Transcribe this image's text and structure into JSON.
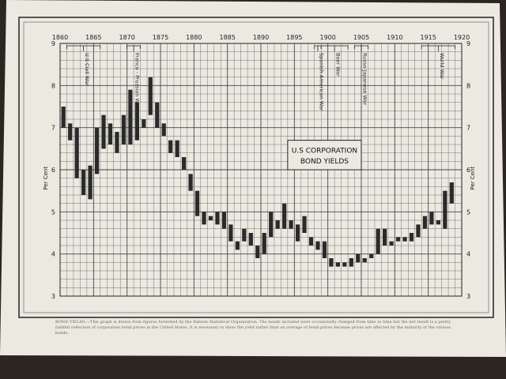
{
  "chart_data": {
    "type": "candlestick",
    "title": "U.S CORPORATION",
    "subtitle": "BOND YIELDS",
    "ylabel": "Per Cent",
    "xlim": [
      1860,
      1920
    ],
    "ylim": [
      3,
      9
    ],
    "x_ticks": [
      1860,
      1865,
      1870,
      1875,
      1880,
      1885,
      1890,
      1895,
      1900,
      1905,
      1910,
      1915,
      1920
    ],
    "y_ticks": [
      3,
      4,
      5,
      6,
      7,
      8,
      9
    ],
    "grid": true,
    "bars": [
      {
        "year": 1860,
        "low": 7.0,
        "high": 7.5
      },
      {
        "year": 1861,
        "low": 6.7,
        "high": 7.1
      },
      {
        "year": 1862,
        "low": 5.8,
        "high": 7.0
      },
      {
        "year": 1863,
        "low": 5.4,
        "high": 6.0
      },
      {
        "year": 1864,
        "low": 5.3,
        "high": 6.1
      },
      {
        "year": 1865,
        "low": 5.9,
        "high": 7.0
      },
      {
        "year": 1866,
        "low": 6.5,
        "high": 7.3
      },
      {
        "year": 1867,
        "low": 6.6,
        "high": 7.1
      },
      {
        "year": 1868,
        "low": 6.4,
        "high": 6.9
      },
      {
        "year": 1869,
        "low": 6.6,
        "high": 7.3
      },
      {
        "year": 1870,
        "low": 6.6,
        "high": 7.9
      },
      {
        "year": 1871,
        "low": 6.7,
        "high": 7.6
      },
      {
        "year": 1872,
        "low": 7.0,
        "high": 7.2
      },
      {
        "year": 1873,
        "low": 7.3,
        "high": 8.2
      },
      {
        "year": 1874,
        "low": 7.0,
        "high": 7.6
      },
      {
        "year": 1875,
        "low": 6.8,
        "high": 7.1
      },
      {
        "year": 1876,
        "low": 6.4,
        "high": 6.7
      },
      {
        "year": 1877,
        "low": 6.3,
        "high": 6.7
      },
      {
        "year": 1878,
        "low": 6.0,
        "high": 6.3
      },
      {
        "year": 1879,
        "low": 5.5,
        "high": 5.9
      },
      {
        "year": 1880,
        "low": 4.9,
        "high": 5.5
      },
      {
        "year": 1881,
        "low": 4.7,
        "high": 5.0
      },
      {
        "year": 1882,
        "low": 4.8,
        "high": 4.9
      },
      {
        "year": 1883,
        "low": 4.7,
        "high": 5.0
      },
      {
        "year": 1884,
        "low": 4.6,
        "high": 5.0
      },
      {
        "year": 1885,
        "low": 4.3,
        "high": 4.7
      },
      {
        "year": 1886,
        "low": 4.1,
        "high": 4.3
      },
      {
        "year": 1887,
        "low": 4.3,
        "high": 4.6
      },
      {
        "year": 1888,
        "low": 4.2,
        "high": 4.5
      },
      {
        "year": 1889,
        "low": 3.9,
        "high": 4.2
      },
      {
        "year": 1890,
        "low": 4.0,
        "high": 4.5
      },
      {
        "year": 1891,
        "low": 4.4,
        "high": 5.0
      },
      {
        "year": 1892,
        "low": 4.6,
        "high": 4.8
      },
      {
        "year": 1893,
        "low": 4.6,
        "high": 5.2
      },
      {
        "year": 1894,
        "low": 4.6,
        "high": 4.8
      },
      {
        "year": 1895,
        "low": 4.3,
        "high": 4.7
      },
      {
        "year": 1896,
        "low": 4.5,
        "high": 4.9
      },
      {
        "year": 1897,
        "low": 4.2,
        "high": 4.4
      },
      {
        "year": 1898,
        "low": 4.1,
        "high": 4.3
      },
      {
        "year": 1899,
        "low": 3.9,
        "high": 4.3
      },
      {
        "year": 1900,
        "low": 3.7,
        "high": 3.9
      },
      {
        "year": 1901,
        "low": 3.7,
        "high": 3.8
      },
      {
        "year": 1902,
        "low": 3.7,
        "high": 3.8
      },
      {
        "year": 1903,
        "low": 3.7,
        "high": 3.9
      },
      {
        "year": 1904,
        "low": 3.8,
        "high": 4.0
      },
      {
        "year": 1905,
        "low": 3.8,
        "high": 3.9
      },
      {
        "year": 1906,
        "low": 3.9,
        "high": 4.0
      },
      {
        "year": 1907,
        "low": 4.0,
        "high": 4.6
      },
      {
        "year": 1908,
        "low": 4.2,
        "high": 4.6
      },
      {
        "year": 1909,
        "low": 4.2,
        "high": 4.3
      },
      {
        "year": 1910,
        "low": 4.3,
        "high": 4.4
      },
      {
        "year": 1911,
        "low": 4.3,
        "high": 4.4
      },
      {
        "year": 1912,
        "low": 4.3,
        "high": 4.5
      },
      {
        "year": 1913,
        "low": 4.4,
        "high": 4.7
      },
      {
        "year": 1914,
        "low": 4.6,
        "high": 4.9
      },
      {
        "year": 1915,
        "low": 4.7,
        "high": 5.0
      },
      {
        "year": 1916,
        "low": 4.7,
        "high": 4.8
      },
      {
        "year": 1917,
        "low": 4.6,
        "high": 5.5
      },
      {
        "year": 1918,
        "low": 5.2,
        "high": 5.7
      }
    ],
    "annotations": [
      {
        "label": "U.S Civil War",
        "start": 1861,
        "end": 1865
      },
      {
        "label": "Franco - Prussian War",
        "start": 1870,
        "end": 1871
      },
      {
        "label": "Spanish-American War",
        "start": 1898,
        "end": 1898
      },
      {
        "label": "Boer War",
        "start": 1899,
        "end": 1902
      },
      {
        "label": "Russo-Japanese War",
        "start": 1904,
        "end": 1905
      },
      {
        "label": "World War",
        "start": 1914,
        "end": 1918
      }
    ]
  },
  "caption": "BOND YIELDS.—This graph is drawn from figures furnished by the Babson Statistical Organization. The bonds included were occasionally changed from time to time but the net result is a pretty faithful reflection of corporation bond prices in the United States. It is necessary to show the yield rather than an average of bond prices because prices are affected by the maturity of the various bonds."
}
